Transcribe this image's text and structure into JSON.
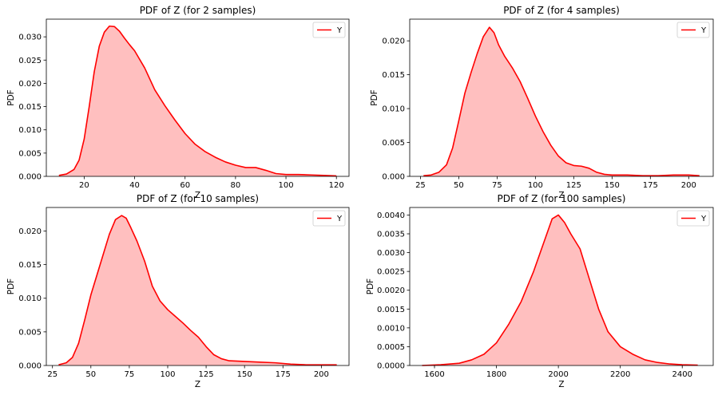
{
  "figure": {
    "colors": {
      "line": "#ff0000",
      "fill": "#ffbfbf",
      "legend_border": "#cccccc"
    }
  },
  "chart_data": [
    {
      "type": "area",
      "title": "PDF of Z (for 2 samples)",
      "xlabel": "Z",
      "ylabel": "PDF",
      "legend": {
        "placement": "top-right",
        "entries": [
          "Y"
        ]
      },
      "grid": false,
      "xlim": [
        5,
        125
      ],
      "ylim": [
        0,
        0.0338
      ],
      "xticks": [
        20,
        40,
        60,
        80,
        100,
        120
      ],
      "xtick_labels": [
        "20",
        "40",
        "60",
        "80",
        "100",
        "120"
      ],
      "yticks": [
        0,
        0.005,
        0.01,
        0.015,
        0.02,
        0.025,
        0.03
      ],
      "ytick_labels": [
        "0.000",
        "0.005",
        "0.010",
        "0.015",
        "0.020",
        "0.025",
        "0.030"
      ],
      "series": [
        {
          "name": "Y",
          "x": [
            10,
            13,
            16,
            18,
            20,
            22,
            24,
            26,
            28,
            30,
            32,
            34,
            36,
            38,
            40,
            44,
            48,
            52,
            56,
            60,
            64,
            68,
            72,
            76,
            80,
            84,
            88,
            92,
            96,
            100,
            105,
            110,
            115,
            120
          ],
          "y": [
            0.0002,
            0.0005,
            0.0015,
            0.0035,
            0.008,
            0.015,
            0.0225,
            0.028,
            0.031,
            0.0323,
            0.0322,
            0.0312,
            0.0297,
            0.0283,
            0.027,
            0.0233,
            0.0186,
            0.0152,
            0.0121,
            0.0092,
            0.0069,
            0.0053,
            0.0041,
            0.0031,
            0.0024,
            0.0019,
            0.0019,
            0.0013,
            0.0006,
            0.0004,
            0.0004,
            0.0003,
            0.0002,
            0.0001
          ]
        }
      ]
    },
    {
      "type": "area",
      "title": "PDF of Z (for 4 samples)",
      "xlabel": "Z",
      "ylabel": "PDF",
      "legend": {
        "placement": "top-right",
        "entries": [
          "Y"
        ]
      },
      "grid": false,
      "xlim": [
        18,
        216
      ],
      "ylim": [
        0,
        0.0232
      ],
      "xticks": [
        25,
        50,
        75,
        100,
        125,
        150,
        175,
        200
      ],
      "xtick_labels": [
        "25",
        "50",
        "75",
        "100",
        "125",
        "150",
        "175",
        "200"
      ],
      "yticks": [
        0,
        0.005,
        0.01,
        0.015,
        0.02
      ],
      "ytick_labels": [
        "0.000",
        "0.005",
        "0.010",
        "0.015",
        "0.020"
      ],
      "series": [
        {
          "name": "Y",
          "x": [
            27,
            32,
            37,
            42,
            46,
            50,
            54,
            58,
            62,
            66,
            70,
            73,
            76,
            80,
            85,
            90,
            95,
            100,
            105,
            110,
            115,
            120,
            125,
            130,
            135,
            140,
            145,
            150,
            160,
            170,
            180,
            190,
            200,
            207
          ],
          "y": [
            0.0001,
            0.0002,
            0.0006,
            0.0017,
            0.0042,
            0.0082,
            0.0123,
            0.0153,
            0.0181,
            0.0206,
            0.022,
            0.0212,
            0.0194,
            0.0177,
            0.016,
            0.014,
            0.0115,
            0.0089,
            0.0066,
            0.0046,
            0.003,
            0.002,
            0.0016,
            0.0015,
            0.0012,
            0.0006,
            0.0003,
            0.0002,
            0.0002,
            0.0001,
            0.0001,
            0.0002,
            0.0002,
            0.0001
          ]
        }
      ]
    },
    {
      "type": "area",
      "title": "PDF of Z (for 10 samples)",
      "xlabel": "Z",
      "ylabel": "PDF",
      "legend": {
        "placement": "top-right",
        "entries": [
          "Y"
        ]
      },
      "grid": false,
      "xlim": [
        21,
        218
      ],
      "ylim": [
        0,
        0.0235
      ],
      "xticks": [
        25,
        50,
        75,
        100,
        125,
        150,
        175,
        200
      ],
      "xtick_labels": [
        "25",
        "50",
        "75",
        "100",
        "125",
        "150",
        "175",
        "200"
      ],
      "yticks": [
        0,
        0.005,
        0.01,
        0.015,
        0.02
      ],
      "ytick_labels": [
        "0.000",
        "0.005",
        "0.010",
        "0.015",
        "0.020"
      ],
      "series": [
        {
          "name": "Y",
          "x": [
            29,
            34,
            38,
            42,
            46,
            50,
            54,
            58,
            62,
            66,
            70,
            73,
            76,
            80,
            85,
            90,
            95,
            100,
            105,
            110,
            115,
            120,
            125,
            130,
            135,
            140,
            150,
            160,
            170,
            180,
            190,
            200,
            210
          ],
          "y": [
            0.0001,
            0.0004,
            0.0012,
            0.0033,
            0.0068,
            0.0105,
            0.0135,
            0.0165,
            0.0195,
            0.0217,
            0.0223,
            0.0219,
            0.0205,
            0.0185,
            0.0155,
            0.0118,
            0.0096,
            0.0083,
            0.0073,
            0.0063,
            0.0052,
            0.0042,
            0.0028,
            0.0016,
            0.001,
            0.0007,
            0.0006,
            0.0005,
            0.0004,
            0.0002,
            0.0001,
            0.0001,
            0.0001
          ]
        }
      ]
    },
    {
      "type": "area",
      "title": "PDF of Z (for 100 samples)",
      "xlabel": "Z",
      "ylabel": "PDF",
      "legend": {
        "placement": "top-right",
        "entries": [
          "Y"
        ]
      },
      "grid": false,
      "xlim": [
        1520,
        2500
      ],
      "ylim": [
        0,
        0.0042
      ],
      "xticks": [
        1600,
        1800,
        2000,
        2200,
        2400
      ],
      "xtick_labels": [
        "1600",
        "1800",
        "2000",
        "2200",
        "2400"
      ],
      "yticks": [
        0,
        0.0005,
        0.001,
        0.0015,
        0.002,
        0.0025,
        0.003,
        0.0035,
        0.004
      ],
      "ytick_labels": [
        "0.0000",
        "0.0005",
        "0.0010",
        "0.0015",
        "0.0020",
        "0.0025",
        "0.0030",
        "0.0035",
        "0.0040"
      ],
      "series": [
        {
          "name": "Y",
          "x": [
            1560,
            1620,
            1680,
            1720,
            1760,
            1800,
            1840,
            1880,
            1920,
            1950,
            1980,
            2000,
            2020,
            2040,
            2070,
            2100,
            2130,
            2160,
            2200,
            2240,
            2280,
            2320,
            2360,
            2400,
            2450
          ],
          "y": [
            0,
            2e-05,
            6e-05,
            0.00015,
            0.0003,
            0.0006,
            0.0011,
            0.0017,
            0.0025,
            0.0032,
            0.0039,
            0.004,
            0.0038,
            0.0035,
            0.0031,
            0.0023,
            0.0015,
            0.0009,
            0.0005,
            0.0003,
            0.00015,
            8e-05,
            4e-05,
            2e-05,
            1e-05
          ]
        }
      ]
    }
  ]
}
